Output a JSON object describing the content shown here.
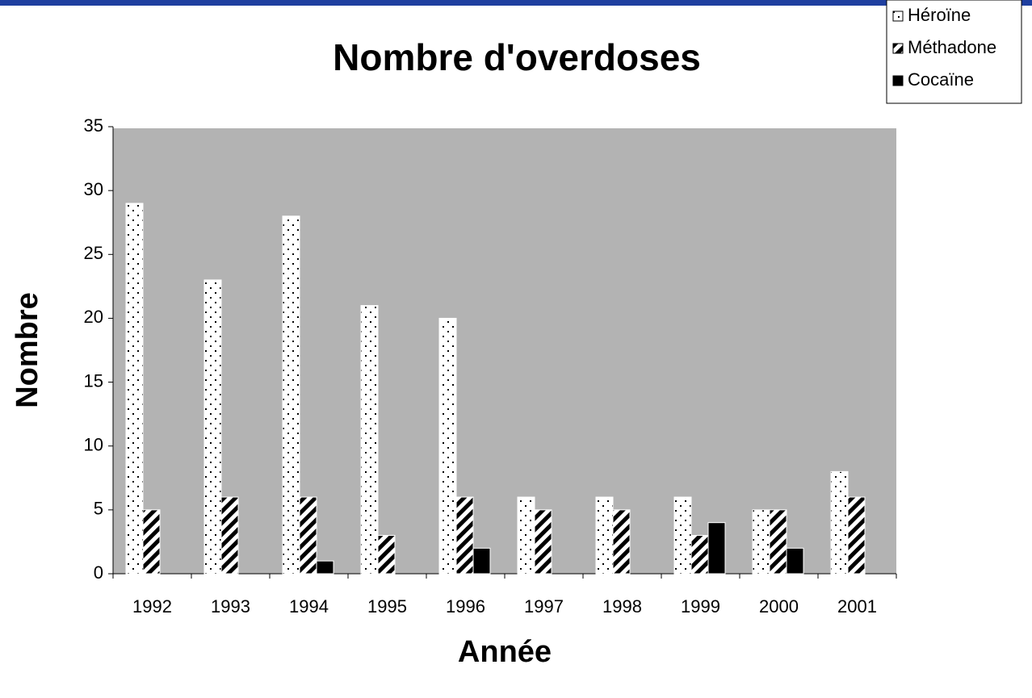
{
  "chart_data": {
    "type": "bar",
    "title": "Nombre d'overdoses",
    "x_label": "Année",
    "y_label": "Nombre",
    "categories": [
      "1992",
      "1993",
      "1994",
      "1995",
      "1996",
      "1997",
      "1998",
      "1999",
      "2000",
      "2001"
    ],
    "series": [
      {
        "name": "Héroïne",
        "color": "#ffffff",
        "values": [
          29,
          23,
          28,
          21,
          20,
          6,
          6,
          6,
          5,
          8
        ]
      },
      {
        "name": "Méthadone",
        "color": "#000000",
        "values": [
          5,
          6,
          6,
          3,
          6,
          5,
          5,
          3,
          5,
          6
        ]
      },
      {
        "name": "Cocaïne",
        "color": "#000000",
        "values": [
          0,
          0,
          1,
          0,
          2,
          0,
          0,
          4,
          2,
          0
        ]
      }
    ],
    "ylim": [
      0,
      35
    ],
    "yticks": [
      0,
      5,
      10,
      15,
      20,
      25,
      30,
      35
    ],
    "grid": false,
    "legend": "top-right"
  }
}
